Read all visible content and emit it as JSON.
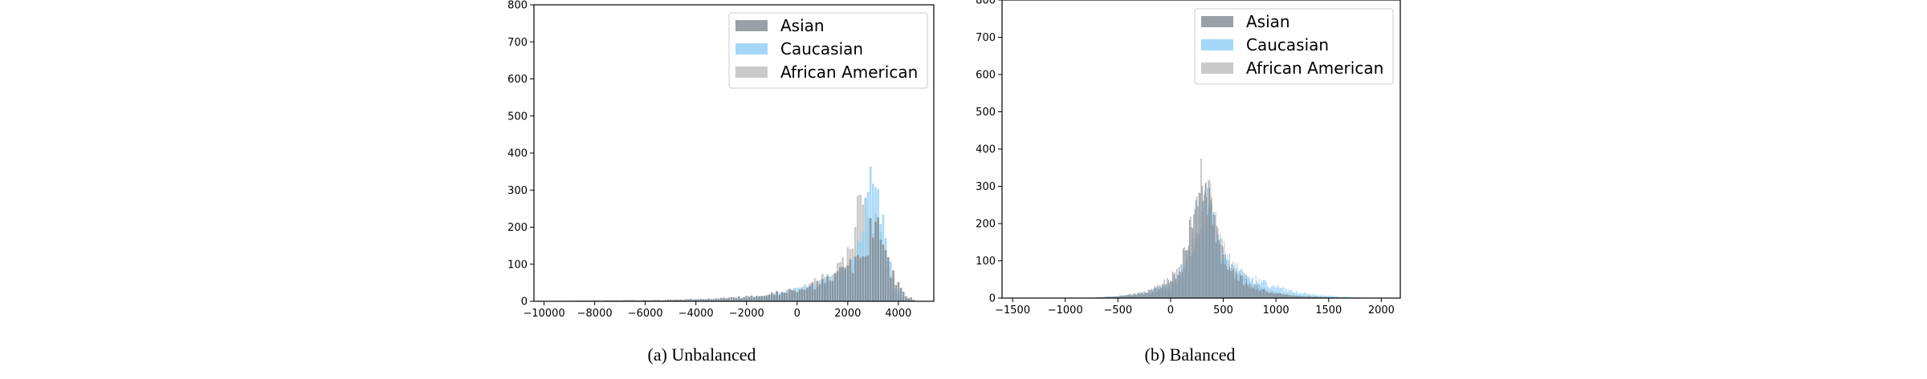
{
  "colors": {
    "asian": "#7f8891",
    "caucasian": "#8ecdf6",
    "african_american": "#bdbdbd"
  },
  "chart_data": [
    {
      "type": "bar",
      "caption": "(a) Unbalanced",
      "title": "",
      "xlabel": "",
      "ylabel": "",
      "xlim": [
        -10400,
        5400
      ],
      "ylim": [
        0,
        800
      ],
      "xticks": [
        -10000,
        -8000,
        -6000,
        -4000,
        -2000,
        0,
        2000,
        4000
      ],
      "yticks": [
        0,
        100,
        200,
        300,
        400,
        500,
        600,
        700,
        800
      ],
      "xtick_labels": [
        "−10000",
        "−8000",
        "−6000",
        "−4000",
        "−2000",
        "0",
        "2000",
        "4000"
      ],
      "ytick_labels": [
        "0",
        "100",
        "200",
        "300",
        "400",
        "500",
        "600",
        "700",
        "800"
      ],
      "legend_position": "top-right",
      "bin_width": 100,
      "series": [
        {
          "name": "African American",
          "x": [
            -3000,
            -2500,
            -2000,
            -1500,
            -1000,
            -500,
            0,
            500,
            1000,
            1500,
            1800,
            2000,
            2200,
            2300,
            2400,
            2500,
            2600,
            2700,
            2800,
            2900,
            3000,
            3100,
            3200,
            3300,
            3400,
            3500,
            3700,
            3900,
            4100,
            4300
          ],
          "values": [
            2,
            5,
            8,
            12,
            18,
            25,
            32,
            45,
            60,
            80,
            100,
            125,
            160,
            200,
            290,
            300,
            260,
            230,
            210,
            235,
            220,
            260,
            240,
            220,
            160,
            110,
            60,
            25,
            10,
            3
          ]
        },
        {
          "name": "Caucasian",
          "x": [
            -4000,
            -3000,
            -2000,
            -1000,
            0,
            1000,
            1500,
            2000,
            2300,
            2500,
            2600,
            2700,
            2800,
            2900,
            3000,
            3100,
            3200,
            3300,
            3400,
            3500,
            3600,
            3800,
            4000,
            4200,
            4400
          ],
          "values": [
            1,
            3,
            8,
            15,
            30,
            50,
            70,
            100,
            135,
            180,
            205,
            260,
            335,
            290,
            265,
            270,
            240,
            215,
            185,
            150,
            110,
            65,
            35,
            15,
            5
          ]
        },
        {
          "name": "Asian",
          "x": [
            -9500,
            -8000,
            -6000,
            -5000,
            -4000,
            -3000,
            -2500,
            -2000,
            -1500,
            -1000,
            -500,
            0,
            500,
            1000,
            1500,
            2000,
            2300,
            2500,
            2700,
            2800,
            2900,
            3000,
            3100,
            3200,
            3300,
            3400,
            3500,
            3600,
            3800,
            4000,
            4200,
            4400,
            4600
          ],
          "values": [
            1,
            2,
            3,
            4,
            6,
            8,
            10,
            13,
            16,
            20,
            25,
            30,
            38,
            50,
            65,
            90,
            110,
            125,
            150,
            165,
            180,
            200,
            210,
            190,
            170,
            150,
            125,
            100,
            70,
            45,
            25,
            12,
            5
          ]
        }
      ]
    },
    {
      "type": "bar",
      "caption": "(b) Balanced",
      "title": "",
      "xlabel": "",
      "ylabel": "",
      "xlim": [
        -1600,
        2180
      ],
      "ylim": [
        0,
        800
      ],
      "xticks": [
        -1500,
        -1000,
        -500,
        0,
        500,
        1000,
        1500,
        2000
      ],
      "yticks": [
        0,
        100,
        200,
        300,
        400,
        500,
        600,
        700,
        800
      ],
      "xtick_labels": [
        "−1500",
        "−1000",
        "−500",
        "0",
        "500",
        "1000",
        "1500",
        "2000"
      ],
      "ytick_labels": [
        "0",
        "100",
        "200",
        "300",
        "400",
        "500",
        "600",
        "700",
        "800"
      ],
      "legend_position": "top-right",
      "bin_width": 10,
      "series": [
        {
          "name": "African American",
          "x": [
            -600,
            -400,
            -200,
            -100,
            0,
            100,
            200,
            250,
            300,
            350,
            400,
            450,
            500,
            550,
            600,
            700,
            800,
            900,
            1000,
            1200,
            1400,
            1600
          ],
          "values": [
            2,
            5,
            10,
            18,
            30,
            55,
            110,
            150,
            230,
            270,
            240,
            170,
            130,
            100,
            80,
            55,
            40,
            25,
            15,
            8,
            4,
            2
          ]
        },
        {
          "name": "Caucasian",
          "x": [
            -800,
            -600,
            -400,
            -200,
            -100,
            0,
            100,
            200,
            250,
            300,
            350,
            400,
            450,
            500,
            550,
            600,
            700,
            800,
            900,
            1000,
            1100,
            1200,
            1400,
            1600,
            1800
          ],
          "values": [
            1,
            3,
            8,
            15,
            25,
            40,
            70,
            120,
            160,
            200,
            235,
            210,
            160,
            120,
            100,
            85,
            65,
            50,
            40,
            30,
            22,
            15,
            8,
            4,
            2
          ]
        },
        {
          "name": "Asian",
          "x": [
            -700,
            -500,
            -300,
            -200,
            -100,
            0,
            100,
            150,
            200,
            250,
            300,
            350,
            400,
            450,
            500,
            550,
            600,
            700,
            800,
            900,
            1000,
            1200,
            1400,
            1600
          ],
          "values": [
            2,
            5,
            12,
            20,
            35,
            55,
            90,
            130,
            190,
            260,
            340,
            300,
            200,
            150,
            110,
            85,
            65,
            45,
            30,
            20,
            12,
            6,
            3,
            1
          ]
        }
      ]
    }
  ]
}
